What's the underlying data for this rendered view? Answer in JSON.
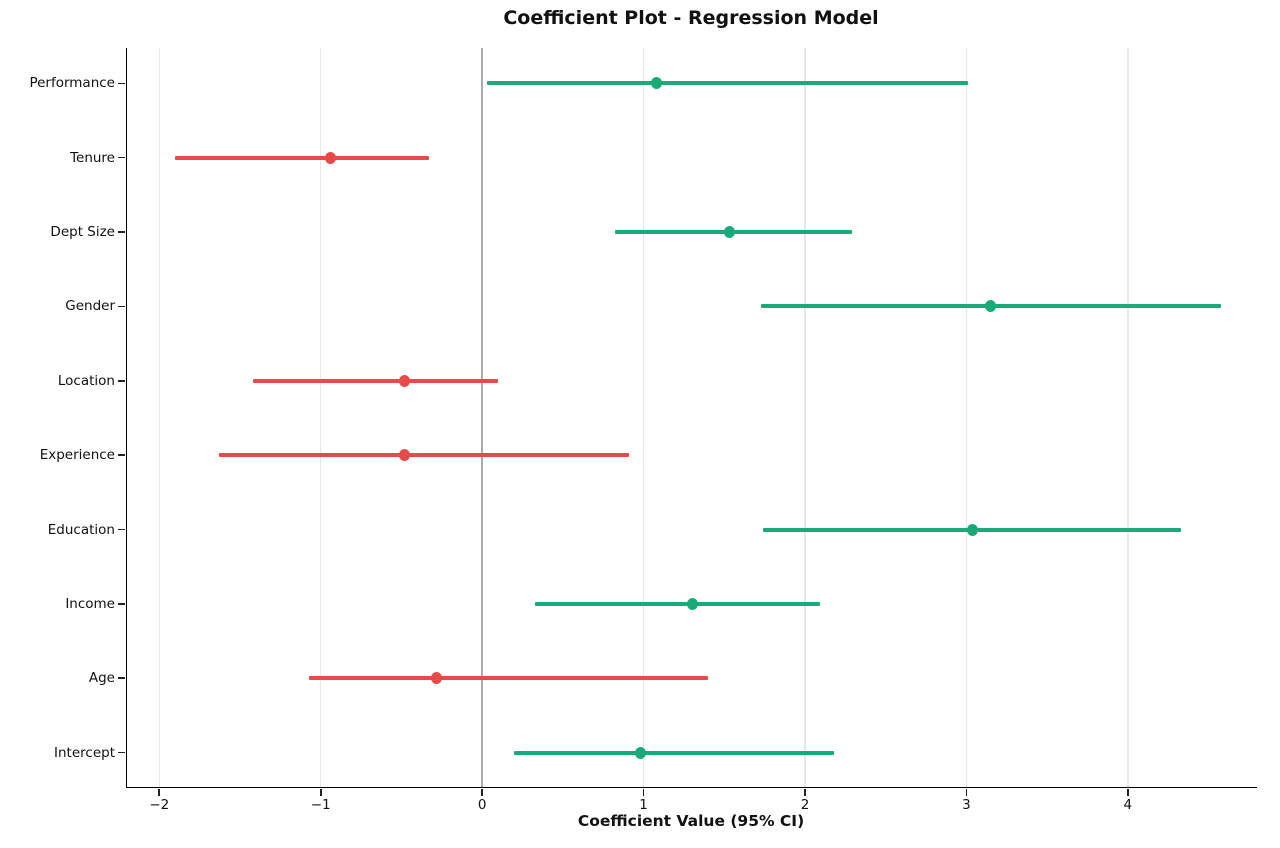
{
  "page": {
    "background": "#ffffff"
  },
  "chart_data": {
    "type": "scatter",
    "variant": "coefficient-dot-whisker-plot",
    "title": "Coefficient Plot - Regression Model",
    "xlabel": "Coefficient Value (95% CI)",
    "ylabel": "",
    "legend": null,
    "categories_top_to_bottom": [
      "Performance",
      "Tenure",
      "Dept Size",
      "Gender",
      "Location",
      "Experience",
      "Education",
      "Income",
      "Age",
      "Intercept"
    ],
    "points": [
      {
        "label": "Performance",
        "coef": 1.08,
        "ci_low": 0.03,
        "ci_high": 3.01,
        "positive": true
      },
      {
        "label": "Tenure",
        "coef": -0.94,
        "ci_low": -1.9,
        "ci_high": -0.33,
        "positive": false
      },
      {
        "label": "Dept Size",
        "coef": 1.53,
        "ci_low": 0.82,
        "ci_high": 2.29,
        "positive": true
      },
      {
        "label": "Gender",
        "coef": 3.15,
        "ci_low": 1.73,
        "ci_high": 4.58,
        "positive": true
      },
      {
        "label": "Location",
        "coef": -0.48,
        "ci_low": -1.42,
        "ci_high": 0.1,
        "positive": false
      },
      {
        "label": "Experience",
        "coef": -0.48,
        "ci_low": -1.63,
        "ci_high": 0.91,
        "positive": false
      },
      {
        "label": "Education",
        "coef": 3.04,
        "ci_low": 1.74,
        "ci_high": 4.33,
        "positive": true
      },
      {
        "label": "Income",
        "coef": 1.3,
        "ci_low": 0.33,
        "ci_high": 2.09,
        "positive": true
      },
      {
        "label": "Age",
        "coef": -0.28,
        "ci_low": -1.07,
        "ci_high": 1.4,
        "positive": false
      },
      {
        "label": "Intercept",
        "coef": 0.98,
        "ci_low": 0.2,
        "ci_high": 2.18,
        "positive": true
      }
    ],
    "xticks": [
      -2,
      -1,
      0,
      1,
      2,
      3,
      4
    ],
    "xtick_labels": [
      "−2",
      "−1",
      "0",
      "1",
      "2",
      "3",
      "4"
    ],
    "xlim": [
      -2.2,
      4.8
    ],
    "grid": {
      "vertical": true,
      "horizontal": false
    },
    "zero_reference_line": true,
    "colors": {
      "positive": "#19ab77",
      "negative": "#e84a4a",
      "grid": "#e7e7e7",
      "zero_line": "#ababab",
      "spine": "#000000",
      "text": "#111111"
    }
  }
}
